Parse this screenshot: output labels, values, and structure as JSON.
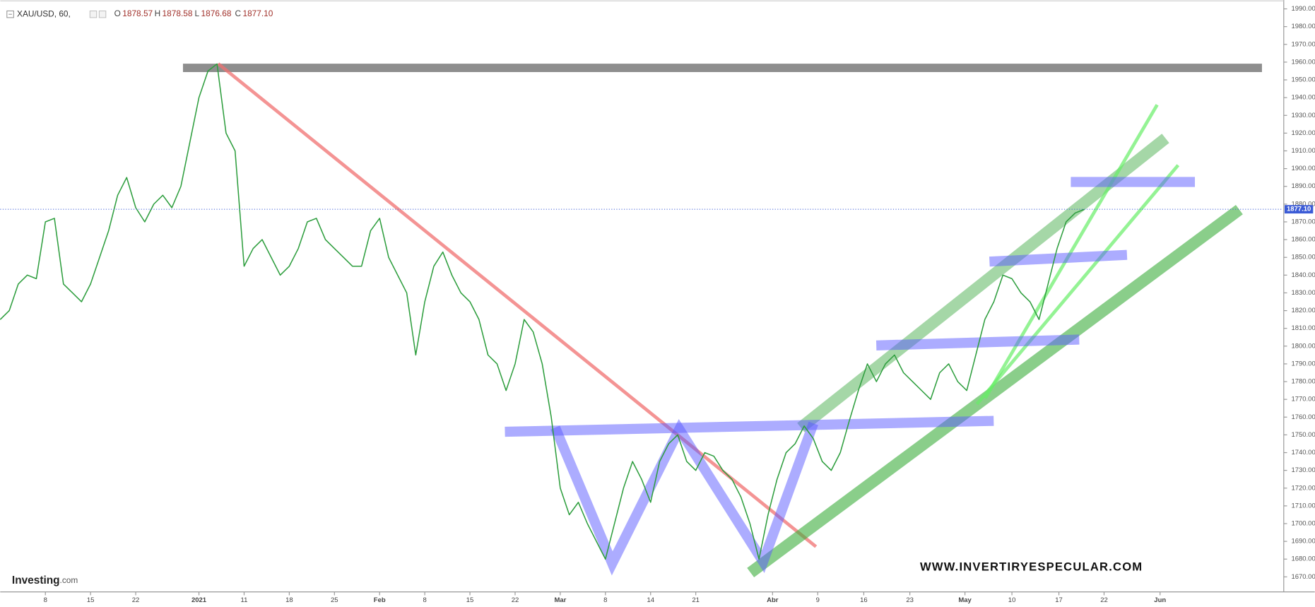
{
  "chart_data": {
    "type": "line",
    "title": "XAU/USD, 60,",
    "ohlc_names": [
      "O",
      "H",
      "L",
      "C"
    ],
    "ohlc": [
      "1878.57",
      "1878.58",
      "1876.68",
      "1877.10"
    ],
    "last_price": {
      "value": 1877.1,
      "label": "1877.10"
    },
    "watermark": "WWW.INVERTIRYESPECULAR.COM",
    "logo": "Investing",
    "logo_suffix": ".com",
    "x": [
      0,
      1,
      2,
      3,
      4,
      5,
      6,
      7,
      8,
      9,
      10,
      11,
      12,
      13,
      14,
      15,
      16,
      17,
      18,
      19,
      20,
      21,
      22,
      23,
      24,
      25,
      26,
      27,
      28,
      29,
      30,
      31,
      32,
      33,
      34,
      35,
      36,
      37,
      38,
      39,
      40,
      41,
      42,
      43,
      44,
      45,
      46,
      47,
      48,
      49,
      50,
      51,
      52,
      53,
      54,
      55,
      56,
      57,
      58,
      59,
      60,
      61,
      62,
      63,
      64,
      65,
      66,
      67,
      68,
      69,
      70,
      71,
      72,
      73,
      74,
      75,
      76,
      77,
      78,
      79,
      80,
      81,
      82,
      83,
      84,
      85,
      86,
      87,
      88,
      89,
      90,
      91,
      92,
      93,
      94,
      95,
      96,
      97,
      98,
      99,
      100,
      101,
      102,
      103,
      104,
      105,
      106,
      107,
      108,
      109,
      110,
      111,
      112,
      113,
      114,
      115,
      116,
      117,
      118,
      119,
      120
    ],
    "series": [
      {
        "name": "XAU/USD",
        "color": "#2e9e3e",
        "values": [
          1815,
          1820,
          1835,
          1840,
          1838,
          1870,
          1872,
          1835,
          1830,
          1825,
          1835,
          1850,
          1865,
          1885,
          1895,
          1878,
          1870,
          1880,
          1885,
          1878,
          1890,
          1915,
          1940,
          1955,
          1959,
          1920,
          1910,
          1845,
          1855,
          1860,
          1850,
          1840,
          1845,
          1855,
          1870,
          1872,
          1860,
          1855,
          1850,
          1845,
          1845,
          1865,
          1872,
          1850,
          1840,
          1830,
          1795,
          1825,
          1845,
          1853,
          1840,
          1830,
          1825,
          1815,
          1795,
          1790,
          1775,
          1790,
          1815,
          1808,
          1790,
          1760,
          1720,
          1705,
          1712,
          1700,
          1690,
          1680,
          1700,
          1720,
          1735,
          1725,
          1712,
          1735,
          1745,
          1750,
          1735,
          1730,
          1740,
          1738,
          1730,
          1725,
          1715,
          1700,
          1680,
          1705,
          1725,
          1740,
          1745,
          1755,
          1748,
          1735,
          1730,
          1740,
          1758,
          1775,
          1790,
          1780,
          1790,
          1795,
          1785,
          1780,
          1775,
          1770,
          1785,
          1790,
          1780,
          1775,
          1795,
          1815,
          1825,
          1840,
          1838,
          1830,
          1825,
          1815,
          1835,
          1855,
          1870,
          1875,
          1877
        ]
      }
    ],
    "xlim": [
      0,
      142
    ],
    "xticks": [
      {
        "value": 5,
        "label": "8"
      },
      {
        "value": 10,
        "label": "15"
      },
      {
        "value": 15,
        "label": "22"
      },
      {
        "value": 22,
        "label": "2021"
      },
      {
        "value": 27,
        "label": "11"
      },
      {
        "value": 32,
        "label": "18"
      },
      {
        "value": 37,
        "label": "25"
      },
      {
        "value": 42,
        "label": "Feb"
      },
      {
        "value": 47,
        "label": "8"
      },
      {
        "value": 52,
        "label": "15"
      },
      {
        "value": 57,
        "label": "22"
      },
      {
        "value": 62,
        "label": "Mar"
      },
      {
        "value": 67,
        "label": "8"
      },
      {
        "value": 72,
        "label": "14"
      },
      {
        "value": 77,
        "label": "21"
      },
      {
        "value": 85.5,
        "label": "Abr"
      },
      {
        "value": 90.5,
        "label": "9"
      },
      {
        "value": 95.6,
        "label": "16"
      },
      {
        "value": 100.7,
        "label": "23"
      },
      {
        "value": 106.8,
        "label": "May"
      },
      {
        "value": 112,
        "label": "10"
      },
      {
        "value": 117.2,
        "label": "17"
      },
      {
        "value": 122.2,
        "label": "22"
      },
      {
        "value": 128.4,
        "label": "Jun"
      }
    ],
    "ylim": [
      1662,
      1995
    ],
    "yticks": [
      {
        "value": 1670,
        "label": "1670.00"
      },
      {
        "value": 1680,
        "label": "1680.00"
      },
      {
        "value": 1690,
        "label": "1690.00"
      },
      {
        "value": 1700,
        "label": "1700.00"
      },
      {
        "value": 1710,
        "label": "1710.00"
      },
      {
        "value": 1720,
        "label": "1720.00"
      },
      {
        "value": 1730,
        "label": "1730.00"
      },
      {
        "value": 1740,
        "label": "1740.00"
      },
      {
        "value": 1750,
        "label": "1750.00"
      },
      {
        "value": 1760,
        "label": "1760.00"
      },
      {
        "value": 1770,
        "label": "1770.00"
      },
      {
        "value": 1780,
        "label": "1780.00"
      },
      {
        "value": 1790,
        "label": "1790.00"
      },
      {
        "value": 1800,
        "label": "1800.00"
      },
      {
        "value": 1810,
        "label": "1810.00"
      },
      {
        "value": 1820,
        "label": "1820.00"
      },
      {
        "value": 1830,
        "label": "1830.00"
      },
      {
        "value": 1840,
        "label": "1840.00"
      },
      {
        "value": 1850,
        "label": "1850.00"
      },
      {
        "value": 1860,
        "label": "1860.00"
      },
      {
        "value": 1870,
        "label": "1870.00"
      },
      {
        "value": 1880,
        "label": "1880.00"
      },
      {
        "value": 1890,
        "label": "1890.00"
      },
      {
        "value": 1900,
        "label": "1900.00"
      },
      {
        "value": 1910,
        "label": "1910.00"
      },
      {
        "value": 1920,
        "label": "1920.00"
      },
      {
        "value": 1930,
        "label": "1930.00"
      },
      {
        "value": 1940,
        "label": "1940.00"
      },
      {
        "value": 1950,
        "label": "1950.00"
      },
      {
        "value": 1960,
        "label": "1960.00"
      },
      {
        "value": 1970,
        "label": "1970.00"
      },
      {
        "value": 1980,
        "label": "1980.00"
      },
      {
        "value": 1990,
        "label": "1990.00"
      }
    ],
    "grid": false
  }
}
